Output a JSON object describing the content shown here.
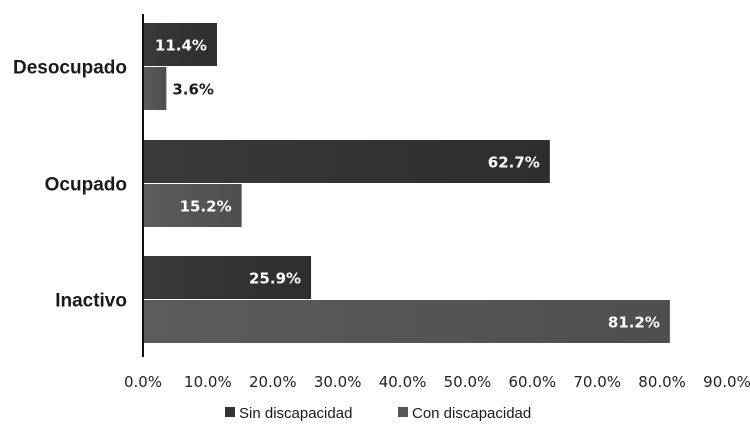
{
  "chart_data": {
    "type": "bar",
    "orientation": "horizontal",
    "categories": [
      "Desocupado",
      "Ocupado",
      "Inactivo"
    ],
    "series": [
      {
        "name": "Sin discapacidad",
        "values": [
          11.4,
          62.7,
          25.9
        ],
        "labels": [
          "11.4%",
          "62.7%",
          "25.9%"
        ],
        "color": "#333333"
      },
      {
        "name": "Con discapacidad",
        "values": [
          3.6,
          15.2,
          81.2
        ],
        "labels": [
          "3.6%",
          "15.2%",
          "81.2%"
        ],
        "color": "#555555"
      }
    ],
    "xlim": [
      0,
      90
    ],
    "xticks": [
      "0.0%",
      "10.0%",
      "20.0%",
      "30.0%",
      "40.0%",
      "50.0%",
      "60.0%",
      "70.0%",
      "80.0%",
      "90.0%"
    ],
    "legend_position": "bottom",
    "grid": false
  }
}
